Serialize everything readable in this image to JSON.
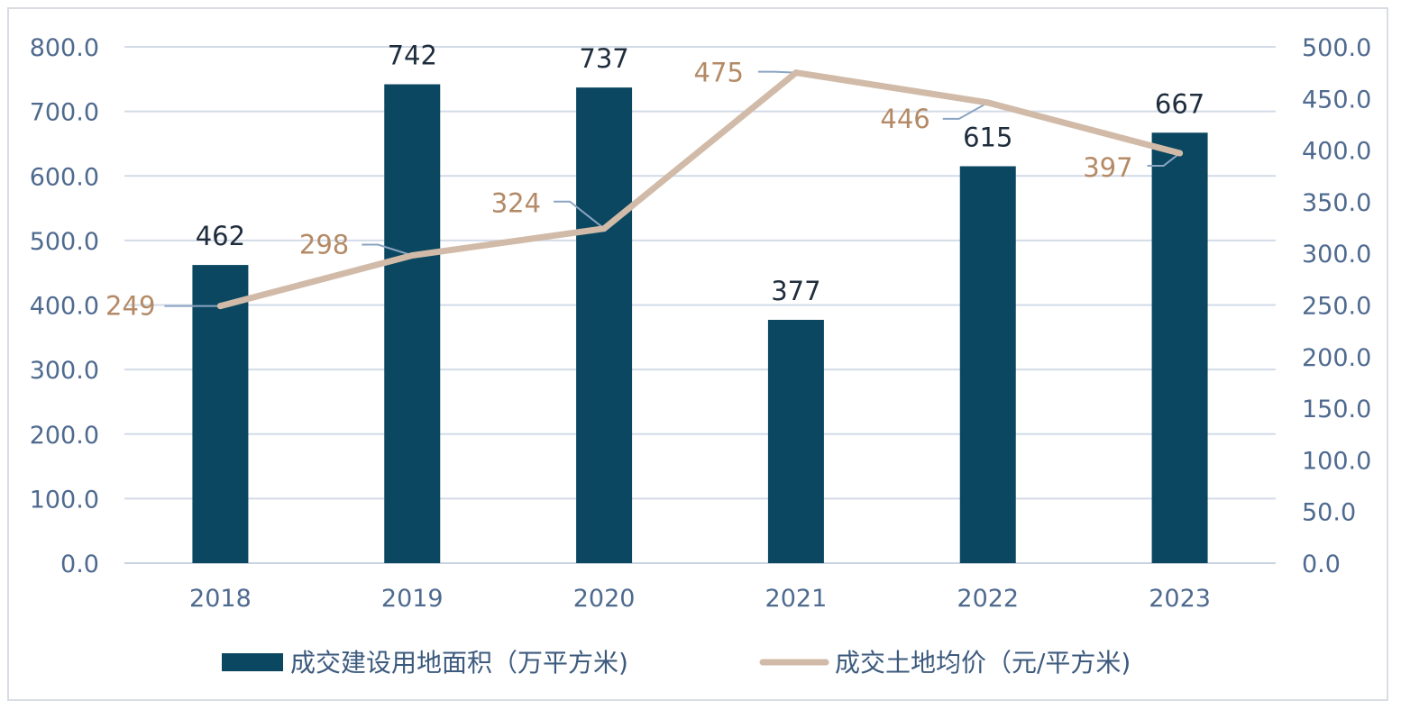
{
  "chart_data": {
    "type": "bar",
    "categories": [
      "2018",
      "2019",
      "2020",
      "2021",
      "2022",
      "2023"
    ],
    "series": [
      {
        "name": "成交建设用地面积（万平方米)",
        "type": "bar",
        "axis": "left",
        "values": [
          462,
          742,
          737,
          377,
          615,
          667
        ],
        "color": "#0b4760"
      },
      {
        "name": "成交土地均价（元/平方米)",
        "type": "line",
        "axis": "right",
        "values": [
          249,
          298,
          324,
          475,
          446,
          397
        ],
        "color": "#d1bba8"
      }
    ],
    "y_left": {
      "ylim": [
        0,
        800
      ],
      "ticks": [
        "0.0",
        "100.0",
        "200.0",
        "300.0",
        "400.0",
        "500.0",
        "600.0",
        "700.0",
        "800.0"
      ]
    },
    "y_right": {
      "ylim": [
        0,
        500
      ],
      "ticks": [
        "0.0",
        "50.0",
        "100.0",
        "150.0",
        "200.0",
        "250.0",
        "300.0",
        "350.0",
        "400.0",
        "450.0",
        "500.0"
      ]
    },
    "grid": true,
    "legend_position": "bottom",
    "label_color": "#b48a66",
    "leader_color": "#8aa4c2"
  }
}
